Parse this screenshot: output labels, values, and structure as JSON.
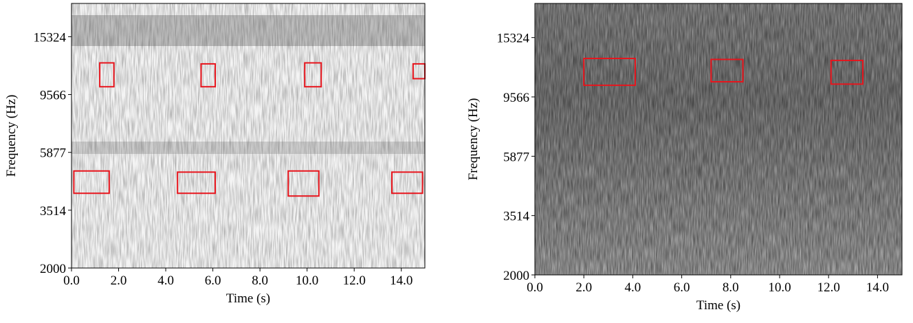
{
  "chart_data": [
    {
      "type": "spectrogram",
      "xlabel": "Time (s)",
      "ylabel": "Frequency (Hz)",
      "yscale": "mel",
      "xlim": [
        0,
        15
      ],
      "xticks": [
        {
          "value": 0,
          "label": "0.0"
        },
        {
          "value": 2,
          "label": "2.0"
        },
        {
          "value": 4,
          "label": "4.0"
        },
        {
          "value": 6,
          "label": "6.0"
        },
        {
          "value": 8,
          "label": "8.0"
        },
        {
          "value": 10,
          "label": "10.0"
        },
        {
          "value": 12,
          "label": "12.0"
        },
        {
          "value": 14,
          "label": "14.0"
        }
      ],
      "ylim": [
        2000,
        20000
      ],
      "yticks": [
        2000,
        3514,
        5877,
        9566,
        15324
      ],
      "box_color": "#e8141c",
      "boxes": [
        {
          "x": [
            1.2,
            1.8
          ],
          "y": [
            10200,
            12400
          ]
        },
        {
          "x": [
            5.5,
            6.1
          ],
          "y": [
            10200,
            12300
          ]
        },
        {
          "x": [
            9.9,
            10.6
          ],
          "y": [
            10200,
            12400
          ]
        },
        {
          "x": [
            14.5,
            15.0
          ],
          "y": [
            10900,
            12300
          ]
        },
        {
          "x": [
            0.1,
            1.6
          ],
          "y": [
            4100,
            5000
          ]
        },
        {
          "x": [
            4.5,
            6.1
          ],
          "y": [
            4100,
            4950
          ]
        },
        {
          "x": [
            9.2,
            10.5
          ],
          "y": [
            4000,
            5000
          ]
        },
        {
          "x": [
            13.6,
            14.9
          ],
          "y": [
            4100,
            4950
          ]
        }
      ]
    },
    {
      "type": "spectrogram",
      "xlabel": "Time (s)",
      "ylabel": "Frequency (Hz)",
      "yscale": "mel",
      "xlim": [
        0,
        15
      ],
      "xticks": [
        {
          "value": 0,
          "label": "0.0"
        },
        {
          "value": 2,
          "label": "2.0"
        },
        {
          "value": 4,
          "label": "4.0"
        },
        {
          "value": 6,
          "label": "6.0"
        },
        {
          "value": 8,
          "label": "8.0"
        },
        {
          "value": 10,
          "label": "10.0"
        },
        {
          "value": 12,
          "label": "12.0"
        },
        {
          "value": 14,
          "label": "14.0"
        }
      ],
      "ylim": [
        2000,
        20000
      ],
      "yticks": [
        2000,
        3514,
        5877,
        9566,
        15324
      ],
      "box_color": "#e8141c",
      "boxes": [
        {
          "x": [
            2.0,
            4.1
          ],
          "y": [
            10500,
            13000
          ]
        },
        {
          "x": [
            7.2,
            8.5
          ],
          "y": [
            10800,
            12900
          ]
        },
        {
          "x": [
            12.1,
            13.4
          ],
          "y": [
            10600,
            12800
          ]
        }
      ]
    }
  ]
}
